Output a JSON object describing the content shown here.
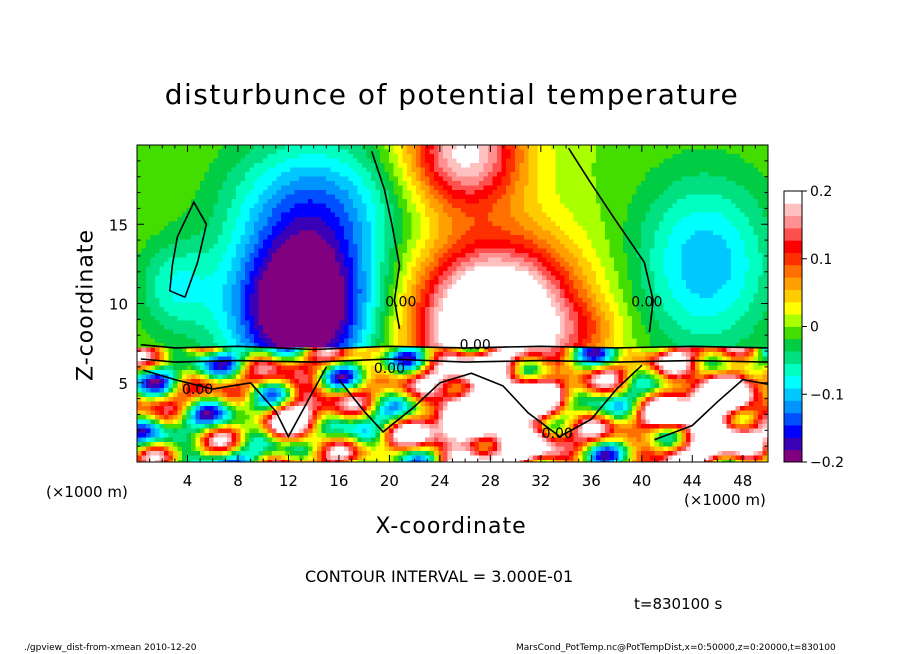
{
  "chart_data": {
    "type": "heatmap",
    "title": "disturbunce of potential temperature",
    "xlabel": "X-coordinate",
    "ylabel": "Z-coordinate",
    "x_unit": "(×1000 m)",
    "y_unit": "(×1000 m)",
    "x_ticks": [
      "4",
      "8",
      "12",
      "16",
      "20",
      "24",
      "28",
      "32",
      "36",
      "40",
      "44",
      "48"
    ],
    "y_ticks": [
      "5",
      "10",
      "15"
    ],
    "xlim": [
      0,
      50
    ],
    "ylim": [
      0,
      20
    ],
    "colorbar": {
      "range": [
        -0.2,
        0.2
      ],
      "ticks": [
        "0.2",
        "0.1",
        "0",
        "−0.1",
        "−0.2"
      ],
      "colors": [
        "#800080",
        "#3a00b8",
        "#0000ff",
        "#0050ff",
        "#0094ff",
        "#00c8ff",
        "#00ffff",
        "#00ffc0",
        "#00e080",
        "#00cc44",
        "#44dd00",
        "#aaff00",
        "#ffff00",
        "#ffcc00",
        "#ffa000",
        "#ff7000",
        "#ff3000",
        "#ff0000",
        "#ff5050",
        "#ff9090",
        "#ffc0c0",
        "#ffffff"
      ]
    },
    "contour_labels": [
      {
        "text": "0.00",
        "x": 20.9,
        "z": 9.8
      },
      {
        "text": "0.00",
        "x": 40.4,
        "z": 9.8
      },
      {
        "text": "0.00",
        "x": 26.8,
        "z": 7.1
      },
      {
        "text": "0.00",
        "x": 20.0,
        "z": 5.6
      },
      {
        "text": "0.00",
        "x": 4.8,
        "z": 4.3
      },
      {
        "text": "0.00",
        "x": 33.3,
        "z": 1.5
      }
    ],
    "contour_interval": "CONTOUR INTERVAL = 3.000E-01",
    "time": "t=830100 s"
  },
  "footer": {
    "left": "./gpview_dist-from-xmean   2010-12-20",
    "right": "MarsCond_PotTemp.nc@PotTempDist,x=0:50000,z=0:20000,t=830100"
  }
}
